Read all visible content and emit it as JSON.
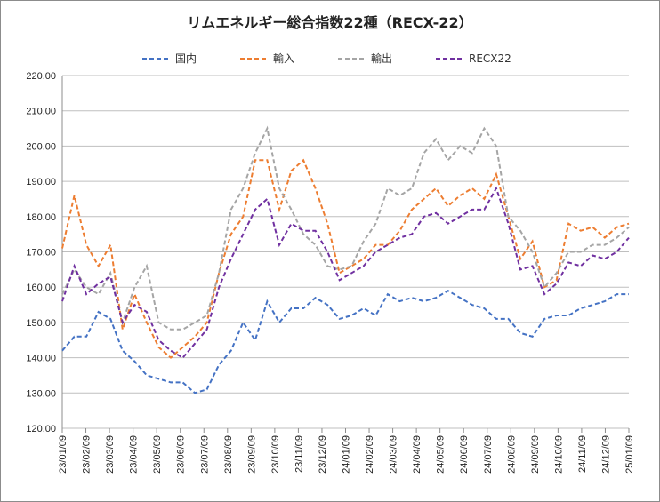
{
  "chart_data": {
    "type": "line",
    "title": "リムエネルギー総合指数22種（RECX-22）",
    "ylim": [
      120,
      220
    ],
    "yticks": [
      "120.00",
      "130.00",
      "140.00",
      "150.00",
      "160.00",
      "170.00",
      "180.00",
      "190.00",
      "200.00",
      "210.00",
      "220.00"
    ],
    "x_labels": [
      "23/01/09",
      "23/02/09",
      "23/03/09",
      "23/04/09",
      "23/05/09",
      "23/06/09",
      "23/07/09",
      "23/08/09",
      "23/09/09",
      "23/10/09",
      "23/11/09",
      "23/12/09",
      "24/01/09",
      "24/02/09",
      "24/03/09",
      "24/04/09",
      "24/05/09",
      "24/06/09",
      "24/07/09",
      "24/08/09",
      "24/09/09",
      "24/10/09",
      "24/11/09",
      "24/12/09",
      "25/01/09"
    ],
    "grid": true,
    "legend_position": "top",
    "series": [
      {
        "name": "国内",
        "color": "#4472c4",
        "values": [
          142,
          146,
          146,
          153,
          151,
          142,
          139,
          135,
          134,
          133,
          133,
          130,
          131,
          138,
          142,
          150,
          145,
          156,
          150,
          154,
          154,
          157,
          155,
          151,
          152,
          154,
          152,
          158,
          156,
          157,
          156,
          157,
          159,
          157,
          155,
          154,
          151,
          151,
          147,
          146,
          151,
          152,
          152,
          154,
          155,
          156,
          158,
          158
        ]
      },
      {
        "name": "輸入",
        "color": "#ed7d31",
        "values": [
          171,
          186,
          172,
          166,
          172,
          148,
          158,
          150,
          143,
          140,
          143,
          146,
          150,
          164,
          175,
          180,
          196,
          196,
          182,
          193,
          196,
          188,
          178,
          164,
          166,
          168,
          172,
          172,
          176,
          182,
          185,
          188,
          183,
          186,
          188,
          185,
          192,
          180,
          168,
          173,
          160,
          162,
          178,
          176,
          177,
          174,
          177,
          178
        ]
      },
      {
        "name": "輸出",
        "color": "#a5a5a5",
        "values": [
          158,
          165,
          160,
          158,
          164,
          150,
          160,
          166,
          150,
          148,
          148,
          150,
          152,
          164,
          182,
          188,
          198,
          205,
          188,
          182,
          175,
          172,
          166,
          165,
          166,
          173,
          178,
          188,
          186,
          188,
          198,
          202,
          196,
          200,
          198,
          205,
          200,
          180,
          176,
          170,
          160,
          164,
          170,
          170,
          172,
          172,
          174,
          177
        ]
      },
      {
        "name": "RECX22",
        "color": "#7030a0",
        "values": [
          156,
          166,
          158,
          161,
          163,
          150,
          155,
          153,
          145,
          142,
          140,
          144,
          148,
          160,
          168,
          175,
          182,
          185,
          172,
          178,
          176,
          176,
          170,
          162,
          164,
          166,
          170,
          172,
          174,
          175,
          180,
          181,
          178,
          180,
          182,
          182,
          188,
          178,
          165,
          166,
          158,
          161,
          167,
          166,
          169,
          168,
          170,
          174
        ]
      }
    ]
  }
}
